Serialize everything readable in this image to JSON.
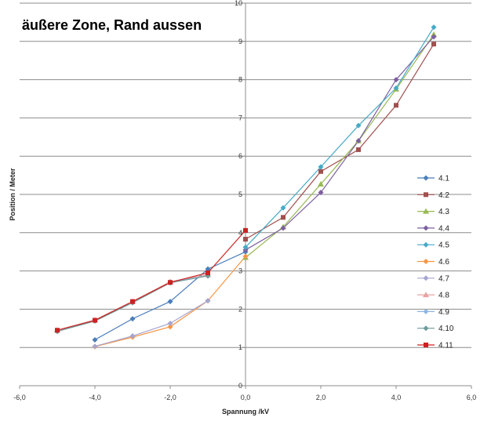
{
  "chart_data": {
    "type": "line",
    "title": "äußere Zone,  Rand aussen",
    "xlabel": "Spannung /kV",
    "ylabel": "Position / Meter",
    "xlim": [
      -6,
      6
    ],
    "ylim": [
      0,
      10
    ],
    "x_ticks": [
      -6,
      -4,
      -2,
      0,
      2,
      4,
      6
    ],
    "x_tick_labels": [
      "-6,0",
      "-4,0",
      "-2,0",
      "0,0",
      "2,0",
      "4,0",
      "6,0"
    ],
    "y_ticks": [
      0,
      1,
      2,
      3,
      4,
      5,
      6,
      7,
      8,
      9,
      10
    ],
    "y_tick_labels": [
      "0",
      "1",
      "2",
      "3",
      "4",
      "5",
      "6",
      "7",
      "8",
      "9",
      "10"
    ],
    "grid": "horizontal",
    "legend_position": "right",
    "series": [
      {
        "name": "4.1",
        "color": "#4a7ebb",
        "marker": "diamond",
        "points": [
          [
            -4,
            1.2
          ],
          [
            -3,
            1.75
          ],
          [
            -2,
            2.2
          ],
          [
            -1,
            3.05
          ],
          [
            0,
            3.5
          ]
        ]
      },
      {
        "name": "4.2",
        "color": "#a0504e",
        "marker": "square",
        "points": [
          [
            0,
            3.83
          ],
          [
            1,
            4.4
          ],
          [
            2,
            5.6
          ],
          [
            3,
            6.17
          ],
          [
            4,
            7.33
          ],
          [
            5,
            8.93
          ]
        ]
      },
      {
        "name": "4.3",
        "color": "#98b954",
        "marker": "triangle",
        "points": [
          [
            0,
            3.35
          ],
          [
            1,
            4.15
          ],
          [
            2,
            5.27
          ],
          [
            3,
            6.4
          ],
          [
            4,
            7.75
          ],
          [
            5,
            9.18
          ]
        ]
      },
      {
        "name": "4.4",
        "color": "#7d60a0",
        "marker": "diamond",
        "points": [
          [
            0,
            3.55
          ],
          [
            1,
            4.12
          ],
          [
            2,
            5.05
          ],
          [
            3,
            6.4
          ],
          [
            4,
            8.0
          ],
          [
            5,
            9.12
          ]
        ]
      },
      {
        "name": "4.5",
        "color": "#46aac5",
        "marker": "diamond",
        "points": [
          [
            0,
            3.62
          ],
          [
            1,
            4.65
          ],
          [
            2,
            5.72
          ],
          [
            3,
            6.8
          ],
          [
            4,
            7.78
          ],
          [
            5,
            9.37
          ]
        ]
      },
      {
        "name": "4.6",
        "color": "#f79646",
        "marker": "diamond",
        "points": [
          [
            -4,
            1.02
          ],
          [
            -3,
            1.27
          ],
          [
            -2,
            1.54
          ],
          [
            -1,
            2.22
          ],
          [
            0,
            3.38
          ]
        ]
      },
      {
        "name": "4.7",
        "color": "#a5a5d0",
        "marker": "diamond",
        "points": [
          [
            -4,
            1.03
          ],
          [
            -3,
            1.3
          ],
          [
            -2,
            1.63
          ],
          [
            -1,
            2.22
          ]
        ]
      },
      {
        "name": "4.8",
        "color": "#e6a3a2",
        "marker": "triangle",
        "points": [
          [
            -5,
            1.45
          ],
          [
            -4,
            1.72
          ],
          [
            -3,
            2.2
          ],
          [
            -2,
            2.72
          ],
          [
            -1,
            2.9
          ]
        ]
      },
      {
        "name": "4.9",
        "color": "#8fb6e0",
        "marker": "diamond",
        "points": [
          [
            -5,
            1.43
          ],
          [
            -4,
            1.7
          ],
          [
            -3,
            2.18
          ],
          [
            -2,
            2.7
          ],
          [
            -1,
            2.88
          ]
        ]
      },
      {
        "name": "4.10",
        "color": "#6f9a9a",
        "marker": "diamond",
        "points": [
          [
            -5,
            1.42
          ],
          [
            -4,
            1.69
          ],
          [
            -3,
            2.17
          ],
          [
            -2,
            2.69
          ],
          [
            -1,
            2.87
          ]
        ]
      },
      {
        "name": "4.11",
        "color": "#cc2222",
        "marker": "square",
        "points": [
          [
            -5,
            1.45
          ],
          [
            -4,
            1.71
          ],
          [
            -3,
            2.2
          ],
          [
            -2,
            2.7
          ],
          [
            -1,
            2.95
          ],
          [
            0,
            4.06
          ]
        ]
      }
    ]
  }
}
